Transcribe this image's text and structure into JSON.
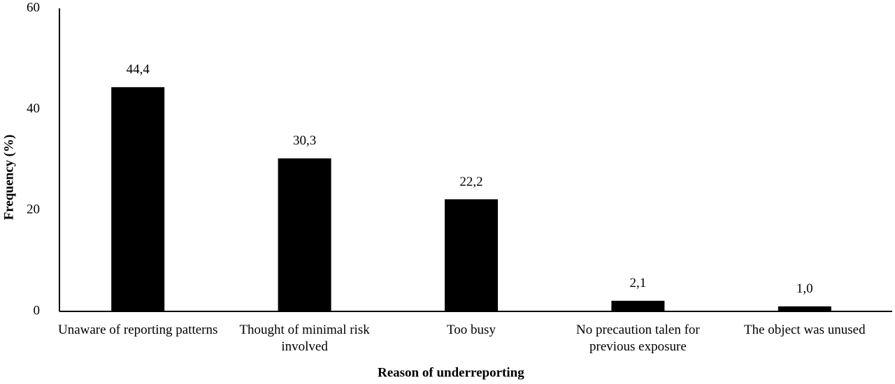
{
  "chart_data": {
    "type": "bar",
    "x_label": "Reason of underreporting",
    "y_label": "Frequency (%)",
    "categories": [
      "Unaware of reporting patterns",
      "Thought of minimal risk involved",
      "Too busy",
      "No precaution talen for previous exposure",
      "The object was unused"
    ],
    "values": [
      44.4,
      30.3,
      22.2,
      2.1,
      1.0
    ],
    "value_labels": [
      "44,4",
      "30,3",
      "22,2",
      "2,1",
      "1,0"
    ],
    "color": "#000000",
    "ylim": [
      0,
      60
    ],
    "yticks": [
      0,
      20,
      40,
      60
    ],
    "grid": false
  }
}
